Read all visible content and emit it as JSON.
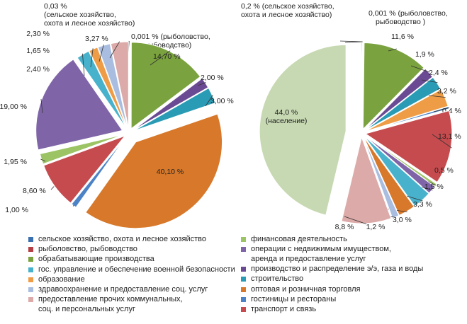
{
  "colors": {
    "agriculture": "#3a6fb0",
    "fishing": "#b43f44",
    "manufacturing": "#7aa23e",
    "energy": "#6a4b93",
    "construction": "#2a9bb4",
    "trade": "#d7782a",
    "hotels": "#4b83c6",
    "transport": "#c64b4e",
    "finance": "#9cc464",
    "real_estate": "#7f65a8",
    "government": "#48b2cc",
    "education": "#ee9c45",
    "health": "#a9bde0",
    "other_services": "#dcaaa8",
    "population": "#c7d9b2"
  },
  "legend": [
    {
      "key": "agriculture",
      "label": "сельское хозяйство, охота и лесное хозяйство"
    },
    {
      "key": "finance",
      "label": "финансовая деятельность"
    },
    {
      "key": "fishing",
      "label": "рыболовство, рыбоводство"
    },
    {
      "key": "real_estate",
      "label": "операции с недвижимым  имуществом,",
      "label2": "аренда и предоставление услуг"
    },
    {
      "key": "manufacturing",
      "label": "обрабатывающие производства"
    },
    {
      "key": "energy",
      "label": "производство и распределение э/э, газа и воды"
    },
    {
      "key": "government",
      "label": "гос. управление и обеспечение военной безопасности"
    },
    {
      "key": "construction",
      "label": "строительство"
    },
    {
      "key": "education",
      "label": "образование"
    },
    {
      "key": "trade",
      "label": "оптовая и розничная торговля"
    },
    {
      "key": "health",
      "label": "здравоохранение и предоставление соц. услуг"
    },
    {
      "key": "hotels",
      "label": "гостиницы и рестораны"
    },
    {
      "key": "other_services",
      "label": "предоставление прочих коммунальных,",
      "label2": "соц. и персональных услуг"
    },
    {
      "key": "transport",
      "label": "транспорт и связь"
    }
  ],
  "chart_data": [
    {
      "type": "pie",
      "title": "",
      "slices": [
        {
          "key": "agriculture",
          "value": 0.03,
          "label": "0,03 %",
          "label2": "(сельское хозяйство,",
          "label3": "охота и лесное хозяйство)"
        },
        {
          "key": "fishing",
          "value": 0.001,
          "label": "0,001 %",
          "label2": "(рыболовство,",
          "label3": "рыбоводство)"
        },
        {
          "key": "manufacturing",
          "value": 14.7,
          "label": "14,70 %"
        },
        {
          "key": "energy",
          "value": 2.0,
          "label": "2,00 %"
        },
        {
          "key": "construction",
          "value": 3.0,
          "label": "3,00 %"
        },
        {
          "key": "trade",
          "value": 40.1,
          "label": "40,10 %"
        },
        {
          "key": "hotels",
          "value": 1.0,
          "label": "1,00 %"
        },
        {
          "key": "transport",
          "value": 8.6,
          "label": "8,60 %"
        },
        {
          "key": "finance",
          "value": 1.95,
          "label": "1,95 %"
        },
        {
          "key": "real_estate",
          "value": 19.0,
          "label": "19,00 %"
        },
        {
          "key": "government",
          "value": 2.4,
          "label": "2,40 %"
        },
        {
          "key": "education",
          "value": 1.65,
          "label": "1,65 %"
        },
        {
          "key": "health",
          "value": 2.3,
          "label": "2,30 %"
        },
        {
          "key": "other_services",
          "value": 3.27,
          "label": "3,27 %"
        }
      ]
    },
    {
      "type": "pie",
      "title": "",
      "slices": [
        {
          "key": "agriculture",
          "value": 0.2,
          "label": "0,2 %",
          "label2": "(сельское хозяйство,",
          "label3": "охота и лесное хозяйство)"
        },
        {
          "key": "fishing",
          "value": 0.001,
          "label": "0,001 %",
          "label2": "(рыболовство,",
          "label3": "рыбоводство )"
        },
        {
          "key": "manufacturing",
          "value": 11.6,
          "label": "11,6 %"
        },
        {
          "key": "energy",
          "value": 1.9,
          "label": "1,9 %"
        },
        {
          "key": "construction",
          "value": 2.4,
          "label": "2,4 %"
        },
        {
          "key": "education",
          "value": 3.2,
          "label": "3,2 %"
        },
        {
          "key": "hotels",
          "value": 0.4,
          "label": "0,4 %"
        },
        {
          "key": "transport",
          "value": 13.1,
          "label": "13,1 %"
        },
        {
          "key": "finance",
          "value": 0.5,
          "label": "0,5 %"
        },
        {
          "key": "real_estate",
          "value": 1.5,
          "label": "1,5 %"
        },
        {
          "key": "government",
          "value": 3.3,
          "label": "3,3 %"
        },
        {
          "key": "trade",
          "value": 3.0,
          "label": "3,0 %"
        },
        {
          "key": "health",
          "value": 1.2,
          "label": "1,2 %"
        },
        {
          "key": "other_services",
          "value": 8.8,
          "label": "8,8 %"
        },
        {
          "key": "population",
          "value": 44.0,
          "label": "44,0 %",
          "label2": "(население)"
        }
      ]
    }
  ]
}
